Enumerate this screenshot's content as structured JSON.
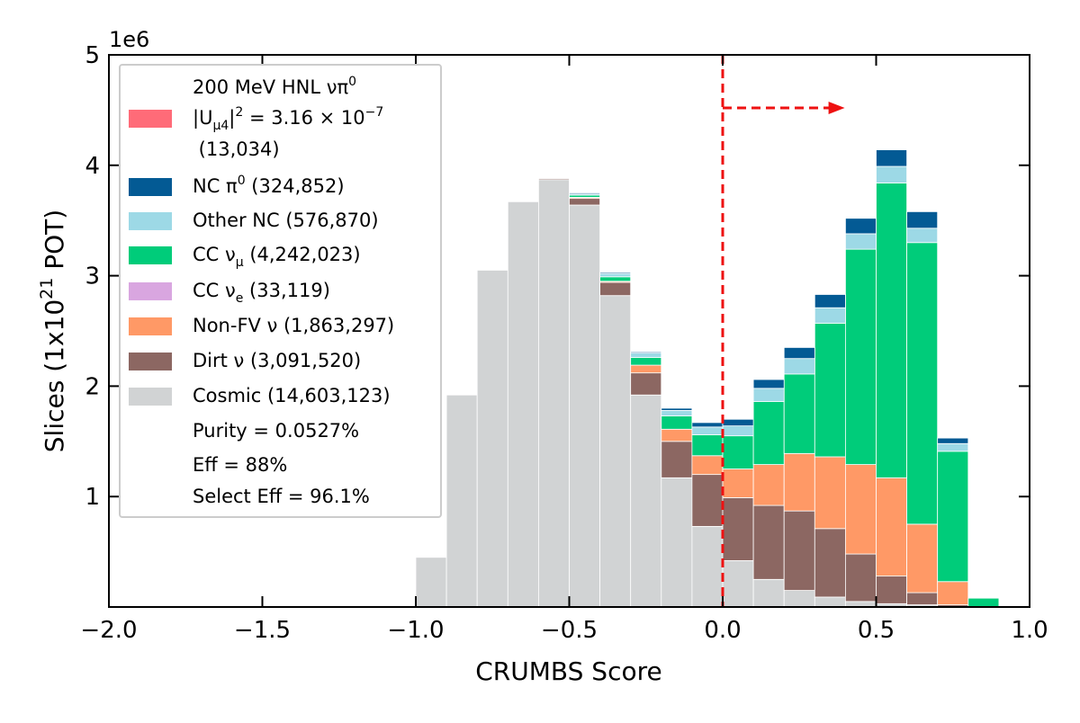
{
  "chart_data": {
    "type": "bar",
    "stacked": true,
    "xlabel": "CRUMBS Score",
    "ylabel_main": "Slices (1x10",
    "ylabel_sup": "21",
    "ylabel_tail": " POT)",
    "y_multiplier_label": "1e6",
    "xlim": [
      -2.0,
      1.0
    ],
    "ylim": [
      0,
      5
    ],
    "xticks": [
      "−2.0",
      "−1.5",
      "−1.0",
      "−0.5",
      "0.0",
      "0.5",
      "1.0"
    ],
    "xtick_values": [
      -2.0,
      -1.5,
      -1.0,
      -0.5,
      0.0,
      0.5,
      1.0
    ],
    "yticks": [
      "1",
      "2",
      "3",
      "4",
      "5"
    ],
    "ytick_values": [
      1,
      2,
      3,
      4,
      5
    ],
    "bin_edges": [
      -1.0,
      -0.9,
      -0.8,
      -0.7,
      -0.6,
      -0.5,
      -0.4,
      -0.3,
      -0.2,
      -0.1,
      0.0,
      0.1,
      0.2,
      0.3,
      0.4,
      0.5,
      0.6,
      0.7,
      0.8,
      0.9
    ],
    "cut_value": 0.0,
    "cut_arrow_y": 4.52,
    "cut_arrow_end_x": 0.38,
    "legend_location": "upper-left",
    "series": [
      {
        "name": "Cosmic (14,603,123)",
        "color": "#d1d3d4",
        "values": [
          0.45,
          1.92,
          3.05,
          3.67,
          3.87,
          3.64,
          2.82,
          1.92,
          1.17,
          0.73,
          0.42,
          0.25,
          0.15,
          0.09,
          0.05,
          0.03,
          0.02,
          0.0,
          0.0
        ]
      },
      {
        "name": "Dirt ν (3,091,520)",
        "color": "#8c6762",
        "values": [
          0.0,
          0.0,
          0.0,
          0.0,
          0.01,
          0.06,
          0.12,
          0.2,
          0.33,
          0.47,
          0.57,
          0.67,
          0.72,
          0.62,
          0.43,
          0.25,
          0.11,
          0.02,
          0.0
        ]
      },
      {
        "name": "Non-FV ν (1,863,297)",
        "color": "#ff9966",
        "values": [
          0.0,
          0.0,
          0.0,
          0.0,
          0.0,
          0.01,
          0.01,
          0.07,
          0.11,
          0.17,
          0.26,
          0.37,
          0.52,
          0.65,
          0.81,
          0.89,
          0.62,
          0.21,
          0.0
        ]
      },
      {
        "name": "CC νe (33,119)",
        "color": "#d9a6e0",
        "values": [
          0.0,
          0.0,
          0.0,
          0.0,
          0.0,
          0.0,
          0.0,
          0.0,
          0.0,
          0.0,
          0.0,
          0.0,
          0.0,
          0.0,
          0.0,
          0.0,
          0.0,
          0.0,
          0.0
        ]
      },
      {
        "name": "CC νμ (4,242,023)",
        "color": "#00cc7a",
        "values": [
          0.0,
          0.0,
          0.0,
          0.0,
          0.0,
          0.02,
          0.04,
          0.07,
          0.12,
          0.19,
          0.3,
          0.57,
          0.72,
          1.21,
          1.95,
          2.67,
          2.55,
          1.18,
          0.08
        ]
      },
      {
        "name": "Other NC (576,870)",
        "color": "#9dd9e6",
        "values": [
          0.0,
          0.0,
          0.0,
          0.0,
          0.0,
          0.01,
          0.03,
          0.04,
          0.05,
          0.07,
          0.09,
          0.12,
          0.14,
          0.14,
          0.14,
          0.15,
          0.13,
          0.07,
          0.0
        ]
      },
      {
        "name": "NC π0 (324,852)",
        "color": "#035a94",
        "values": [
          0.0,
          0.0,
          0.0,
          0.0,
          0.0,
          0.01,
          0.01,
          0.01,
          0.02,
          0.04,
          0.06,
          0.08,
          0.1,
          0.12,
          0.14,
          0.15,
          0.15,
          0.05,
          0.0
        ]
      },
      {
        "name": "200 MeV HNL νπ0 |Uμ4|2 = 3.16×10−7 (13,034)",
        "color": "#ff6b78",
        "values": [
          0.0,
          0.0,
          0.0,
          0.0,
          0.0,
          0.0,
          0.0,
          0.0,
          0.0,
          0.0,
          0.0,
          0.0,
          0.0,
          0.0,
          0.0,
          0.0,
          0.0,
          0.0,
          0.0
        ]
      }
    ],
    "legend": {
      "hnl_line1": "200 MeV HNL νπ",
      "hnl_line1_sup": "0",
      "hnl_line2_a": "|U",
      "hnl_line2_sub": "μ4",
      "hnl_line2_b": "|",
      "hnl_line2_sup": "2",
      "hnl_line2_c": " = 3.16 × 10",
      "hnl_line2_sup2": "−7",
      "hnl_line3": " (13,034)",
      "nc_pi0_a": "NC π",
      "nc_pi0_sup": "0",
      "nc_pi0_b": " (324,852)",
      "other_nc": "Other NC (576,870)",
      "cc_numu_a": "CC ν",
      "cc_numu_sub": "μ",
      "cc_numu_b": " (4,242,023)",
      "cc_nue_a": "CC ν",
      "cc_nue_sub": "e",
      "cc_nue_b": " (33,119)",
      "nonfv": "Non-FV ν (1,863,297)",
      "dirt": "Dirt ν (3,091,520)",
      "cosmic": "Cosmic (14,603,123)",
      "purity": "Purity = 0.0527%",
      "eff": "Eff = 88%",
      "select_eff": "Select Eff = 96.1%"
    }
  }
}
